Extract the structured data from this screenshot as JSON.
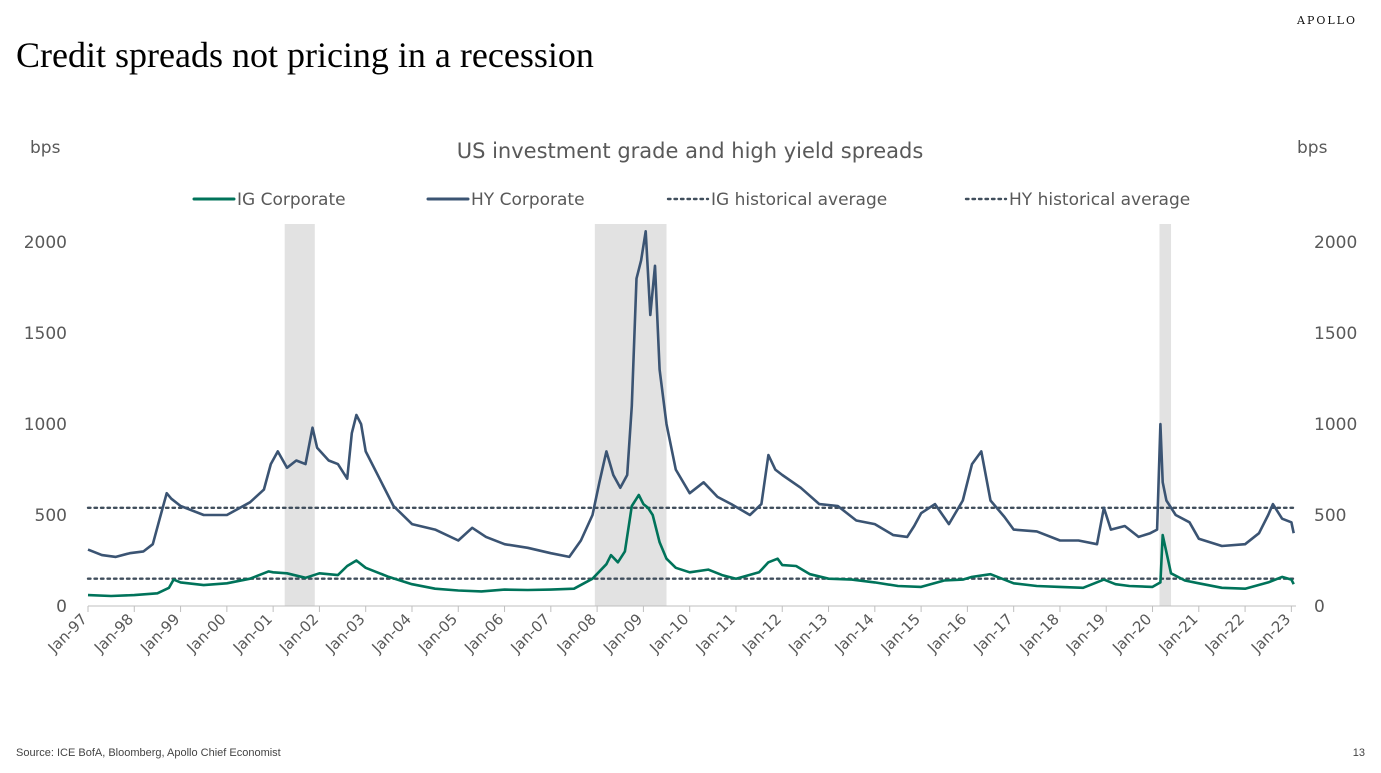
{
  "brand": "APOLLO",
  "page_title": "Credit spreads not pricing in a recession",
  "source": "Source: ICE BofA, Bloomberg, Apollo Chief Economist",
  "page_number": "13",
  "chart_data": {
    "type": "line",
    "title": "US investment grade and high yield spreads",
    "ylabel_left": "bps",
    "ylabel_right": "bps",
    "ylim": [
      0,
      2100
    ],
    "yticks": [
      0,
      500,
      1000,
      1500,
      2000
    ],
    "xlim": [
      1997.0,
      2023.1
    ],
    "xtick_labels": [
      "Jan-97",
      "Jan-98",
      "Jan-99",
      "Jan-00",
      "Jan-01",
      "Jan-02",
      "Jan-03",
      "Jan-04",
      "Jan-05",
      "Jan-06",
      "Jan-07",
      "Jan-08",
      "Jan-09",
      "Jan-10",
      "Jan-11",
      "Jan-12",
      "Jan-13",
      "Jan-14",
      "Jan-15",
      "Jan-16",
      "Jan-17",
      "Jan-18",
      "Jan-19",
      "Jan-20",
      "Jan-21",
      "Jan-22",
      "Jan-23"
    ],
    "recessions": [
      [
        2001.25,
        2001.9
      ],
      [
        2007.95,
        2009.5
      ],
      [
        2020.15,
        2020.4
      ]
    ],
    "legend_position": "top",
    "colors": {
      "ig": "#00735a",
      "hy": "#3b5473",
      "avg": "#404e5c",
      "recession": "#e2e2e2"
    },
    "series": [
      {
        "name": "IG Corporate",
        "x": [
          1997.0,
          1997.5,
          1998.0,
          1998.5,
          1998.75,
          1998.85,
          1999.0,
          1999.5,
          2000.0,
          2000.5,
          2000.9,
          2001.0,
          2001.3,
          2001.7,
          2002.0,
          2002.4,
          2002.6,
          2002.8,
          2003.0,
          2003.5,
          2004.0,
          2004.5,
          2005.0,
          2005.5,
          2006.0,
          2006.5,
          2007.0,
          2007.5,
          2007.9,
          2008.2,
          2008.3,
          2008.45,
          2008.6,
          2008.75,
          2008.9,
          2009.0,
          2009.1,
          2009.2,
          2009.35,
          2009.5,
          2009.7,
          2010.0,
          2010.4,
          2010.7,
          2011.0,
          2011.5,
          2011.7,
          2011.9,
          2012.0,
          2012.3,
          2012.6,
          2013.0,
          2013.5,
          2014.0,
          2014.5,
          2015.0,
          2015.5,
          2015.9,
          2016.1,
          2016.5,
          2017.0,
          2017.5,
          2018.0,
          2018.5,
          2018.95,
          2019.2,
          2019.5,
          2020.0,
          2020.17,
          2020.22,
          2020.4,
          2020.7,
          2021.0,
          2021.5,
          2022.0,
          2022.5,
          2022.8,
          2023.0,
          2023.05
        ],
        "values": [
          60,
          55,
          60,
          70,
          100,
          145,
          130,
          115,
          125,
          150,
          190,
          185,
          180,
          155,
          180,
          170,
          220,
          250,
          210,
          160,
          120,
          95,
          85,
          80,
          90,
          88,
          90,
          95,
          150,
          230,
          280,
          240,
          300,
          550,
          610,
          560,
          540,
          500,
          350,
          260,
          210,
          185,
          200,
          170,
          150,
          185,
          240,
          260,
          225,
          220,
          175,
          150,
          145,
          130,
          110,
          105,
          140,
          145,
          160,
          175,
          125,
          110,
          105,
          100,
          145,
          120,
          110,
          105,
          130,
          390,
          180,
          140,
          125,
          100,
          95,
          130,
          160,
          145,
          120
        ]
      },
      {
        "name": "HY Corporate",
        "x": [
          1997.0,
          1997.3,
          1997.6,
          1997.9,
          1998.2,
          1998.4,
          1998.55,
          1998.7,
          1998.8,
          1999.0,
          1999.5,
          2000.0,
          2000.5,
          2000.8,
          2000.95,
          2001.1,
          2001.3,
          2001.5,
          2001.7,
          2001.85,
          2001.95,
          2002.2,
          2002.4,
          2002.6,
          2002.7,
          2002.8,
          2002.9,
          2003.0,
          2003.3,
          2003.6,
          2004.0,
          2004.5,
          2005.0,
          2005.3,
          2005.6,
          2006.0,
          2006.5,
          2007.0,
          2007.4,
          2007.65,
          2007.9,
          2008.05,
          2008.2,
          2008.35,
          2008.5,
          2008.65,
          2008.75,
          2008.85,
          2008.95,
          2009.05,
          2009.15,
          2009.25,
          2009.35,
          2009.5,
          2009.7,
          2010.0,
          2010.3,
          2010.6,
          2010.9,
          2011.3,
          2011.55,
          2011.7,
          2011.85,
          2012.0,
          2012.4,
          2012.8,
          2013.2,
          2013.6,
          2014.0,
          2014.4,
          2014.7,
          2014.85,
          2015.0,
          2015.3,
          2015.6,
          2015.9,
          2016.1,
          2016.3,
          2016.5,
          2016.8,
          2017.0,
          2017.5,
          2018.0,
          2018.4,
          2018.8,
          2018.95,
          2019.1,
          2019.4,
          2019.7,
          2019.95,
          2020.1,
          2020.17,
          2020.22,
          2020.3,
          2020.5,
          2020.8,
          2021.0,
          2021.5,
          2022.0,
          2022.3,
          2022.5,
          2022.6,
          2022.8,
          2023.0,
          2023.05
        ],
        "values": [
          310,
          280,
          270,
          290,
          300,
          340,
          480,
          620,
          590,
          550,
          500,
          500,
          570,
          640,
          780,
          850,
          760,
          800,
          780,
          980,
          870,
          800,
          780,
          700,
          950,
          1050,
          1000,
          850,
          700,
          550,
          450,
          420,
          360,
          430,
          380,
          340,
          320,
          290,
          270,
          360,
          500,
          680,
          850,
          720,
          650,
          720,
          1100,
          1800,
          1900,
          2060,
          1600,
          1870,
          1300,
          1000,
          750,
          620,
          680,
          600,
          560,
          500,
          560,
          830,
          750,
          720,
          650,
          560,
          550,
          470,
          450,
          390,
          380,
          440,
          510,
          560,
          450,
          580,
          780,
          850,
          580,
          490,
          420,
          410,
          360,
          360,
          340,
          540,
          420,
          440,
          380,
          400,
          420,
          1000,
          680,
          580,
          500,
          460,
          370,
          330,
          340,
          400,
          500,
          560,
          480,
          460,
          400
        ]
      },
      {
        "name": "IG historical average",
        "value": 150
      },
      {
        "name": "HY historical average",
        "value": 540
      }
    ]
  }
}
